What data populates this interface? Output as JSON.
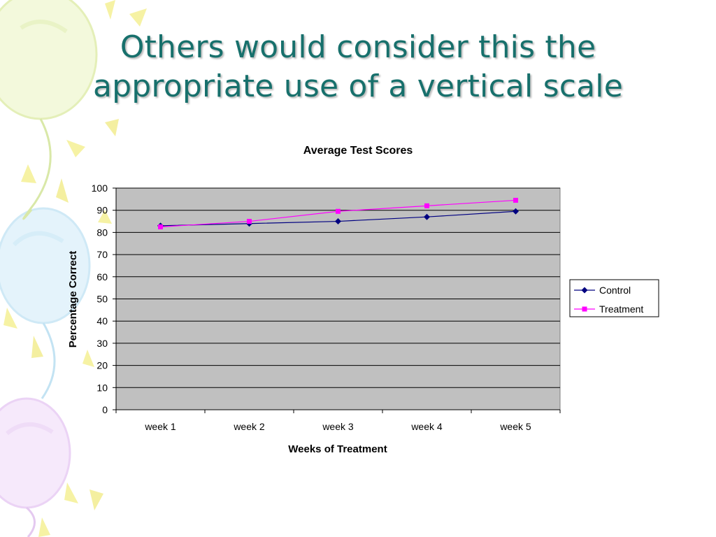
{
  "slide": {
    "title_line1": "Others would consider this the",
    "title_line2": "appropriate use of a vertical scale"
  },
  "colors": {
    "title": "#17706c",
    "plot_area": "#c0c0c0",
    "gridline": "#000000",
    "control": "#000080",
    "treatment": "#ff00ff"
  },
  "icons": {
    "background": "balloon-decoration-icon",
    "control_marker": "diamond-marker-icon",
    "treatment_marker": "square-marker-icon"
  },
  "chart_data": {
    "type": "line",
    "title": "Average Test Scores",
    "xlabel": "Weeks of Treatment",
    "ylabel": "Percentage Correct",
    "categories": [
      "week 1",
      "week 2",
      "week 3",
      "week 4",
      "week 5"
    ],
    "ylim": [
      0,
      100
    ],
    "yticks": [
      0,
      10,
      20,
      30,
      40,
      50,
      60,
      70,
      80,
      90,
      100
    ],
    "grid": true,
    "legend_position": "right",
    "series": [
      {
        "name": "Control",
        "marker": "diamond",
        "values": [
          83,
          84,
          85,
          87,
          89.5
        ]
      },
      {
        "name": "Treatment",
        "marker": "square",
        "values": [
          82.5,
          85,
          89.5,
          92,
          94.5
        ]
      }
    ]
  }
}
